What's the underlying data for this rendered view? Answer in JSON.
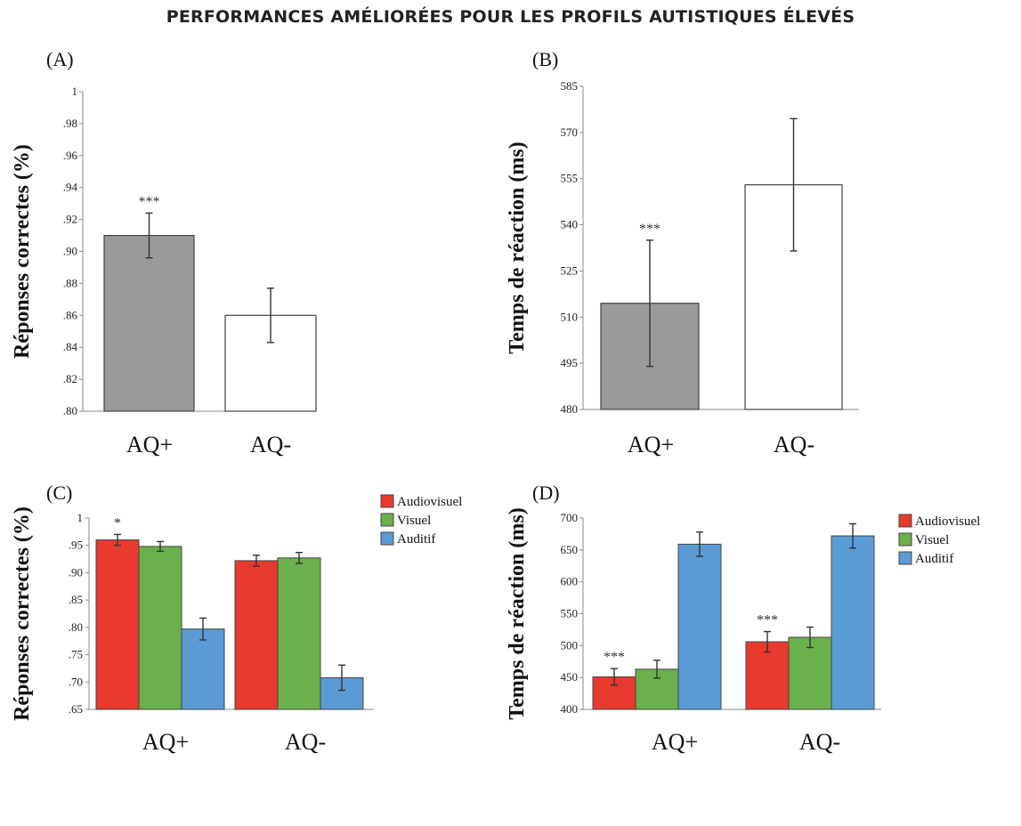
{
  "title": "PERFORMANCES AMÉLIORÉES POUR LES PROFILS AUTISTIQUES ÉLEVÉS",
  "colors": {
    "gray_bar": "#999999",
    "white_bar": "#ffffff",
    "audiovisuel": "#e8392f",
    "visuel": "#6ab04c",
    "auditif": "#5b9bd5"
  },
  "chart_data": [
    {
      "panel": "(A)",
      "type": "bar",
      "ylabel": "Réponses correctes (%)",
      "categories": [
        "AQ+",
        "AQ-"
      ],
      "values": [
        0.91,
        0.86
      ],
      "errors": [
        0.014,
        0.017
      ],
      "bar_colors": [
        "gray",
        "white"
      ],
      "annotations": [
        "***",
        ""
      ],
      "ylim": [
        0.8,
        1.0
      ],
      "yticks": [
        0.8,
        0.82,
        0.84,
        0.86,
        0.88,
        0.9,
        0.92,
        0.94,
        0.96,
        0.98,
        1.0
      ],
      "yticklabels": [
        ".80",
        ".82",
        ".84",
        ".86",
        ".88",
        ".90",
        ".92",
        ".94",
        ".96",
        ".98",
        "1"
      ]
    },
    {
      "panel": "(B)",
      "type": "bar",
      "ylabel": "Temps de réaction (ms)",
      "categories": [
        "AQ+",
        "AQ-"
      ],
      "values": [
        514.5,
        553
      ],
      "errors": [
        20.5,
        21.5
      ],
      "bar_colors": [
        "gray",
        "white"
      ],
      "annotations": [
        "***",
        ""
      ],
      "ylim": [
        480,
        585
      ],
      "yticks": [
        480,
        495,
        510,
        525,
        540,
        555,
        570,
        585
      ],
      "yticklabels": [
        "480",
        "495",
        "510",
        "525",
        "540",
        "555",
        "570",
        "585"
      ]
    },
    {
      "panel": "(C)",
      "type": "bar",
      "ylabel": "Réponses correctes (%)",
      "categories": [
        "AQ+",
        "AQ-"
      ],
      "series": [
        {
          "name": "Audiovisuel",
          "values": [
            0.96,
            0.922
          ],
          "errors": [
            0.01,
            0.01
          ]
        },
        {
          "name": "Visuel",
          "values": [
            0.948,
            0.927
          ],
          "errors": [
            0.009,
            0.01
          ]
        },
        {
          "name": "Auditif",
          "values": [
            0.797,
            0.708
          ],
          "errors": [
            0.02,
            0.023
          ]
        }
      ],
      "annotations": [
        [
          "*",
          "",
          ""
        ],
        [
          "",
          "",
          ""
        ]
      ],
      "ylim": [
        0.65,
        1.0
      ],
      "yticks": [
        0.65,
        0.7,
        0.75,
        0.8,
        0.85,
        0.9,
        0.95,
        1.0
      ],
      "yticklabels": [
        ".65",
        ".70",
        ".75",
        ".80",
        ".85",
        ".90",
        ".95",
        "1"
      ],
      "legend": "right"
    },
    {
      "panel": "(D)",
      "type": "bar",
      "ylabel": "Temps de réaction (ms)",
      "categories": [
        "AQ+",
        "AQ-"
      ],
      "series": [
        {
          "name": "Audiovisuel",
          "values": [
            451,
            506
          ],
          "errors": [
            13,
            16
          ]
        },
        {
          "name": "Visuel",
          "values": [
            463,
            513
          ],
          "errors": [
            14,
            16
          ]
        },
        {
          "name": "Auditif",
          "values": [
            659,
            672
          ],
          "errors": [
            19,
            19
          ]
        }
      ],
      "annotations": [
        [
          "***",
          "",
          ""
        ],
        [
          "***",
          "",
          ""
        ]
      ],
      "ylim": [
        400,
        700
      ],
      "yticks": [
        400,
        450,
        500,
        550,
        600,
        650,
        700
      ],
      "yticklabels": [
        "400",
        "450",
        "500",
        "550",
        "600",
        "650",
        "700"
      ],
      "legend": "right"
    }
  ]
}
